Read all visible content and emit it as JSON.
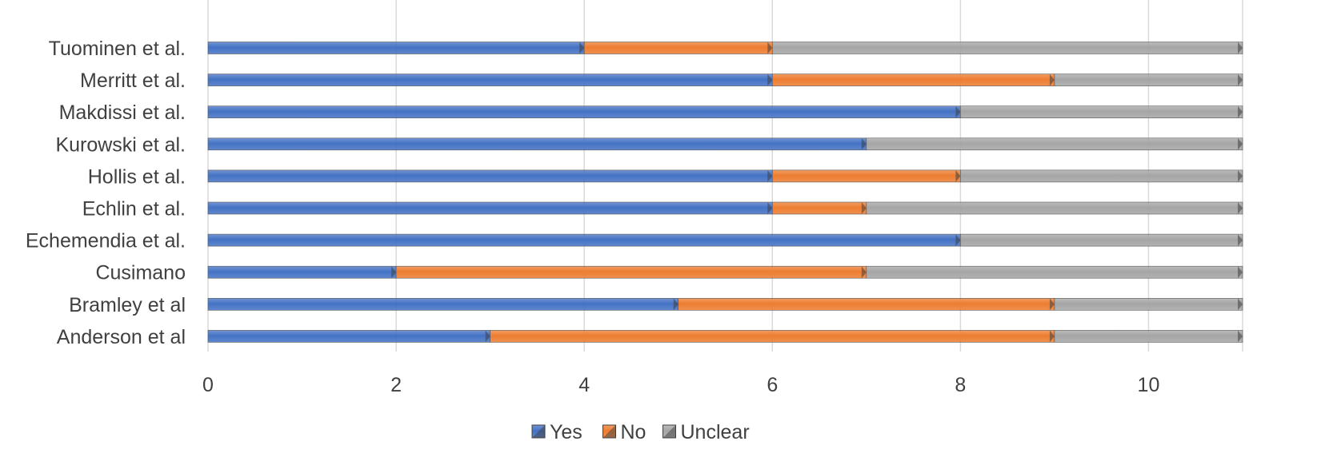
{
  "chart_data": {
    "type": "bar",
    "orientation": "horizontal",
    "stacked": true,
    "categories": [
      "Tuominen et al.",
      "Merritt et al.",
      "Makdissi et al.",
      "Kurowski et al.",
      "Hollis et al.",
      "Echlin et al.",
      "Echemendia et al.",
      "Cusimano",
      "Bramley et al",
      "Anderson et al"
    ],
    "series": [
      {
        "name": "Yes",
        "color": "#4472C4",
        "values": [
          4,
          6,
          8,
          7,
          6,
          6,
          8,
          2,
          5,
          3
        ]
      },
      {
        "name": "No",
        "color": "#ED7D31",
        "values": [
          2,
          3,
          0,
          0,
          2,
          1,
          0,
          5,
          4,
          6
        ]
      },
      {
        "name": "Unclear",
        "color": "#A5A5A5",
        "values": [
          5,
          2,
          3,
          4,
          3,
          4,
          3,
          4,
          2,
          2
        ]
      }
    ],
    "xticks": [
      0,
      2,
      4,
      6,
      8,
      10
    ],
    "xlim": [
      0,
      11
    ],
    "title": "",
    "xlabel": "",
    "ylabel": "",
    "grid": "vertical",
    "legend": "bottom-center"
  }
}
